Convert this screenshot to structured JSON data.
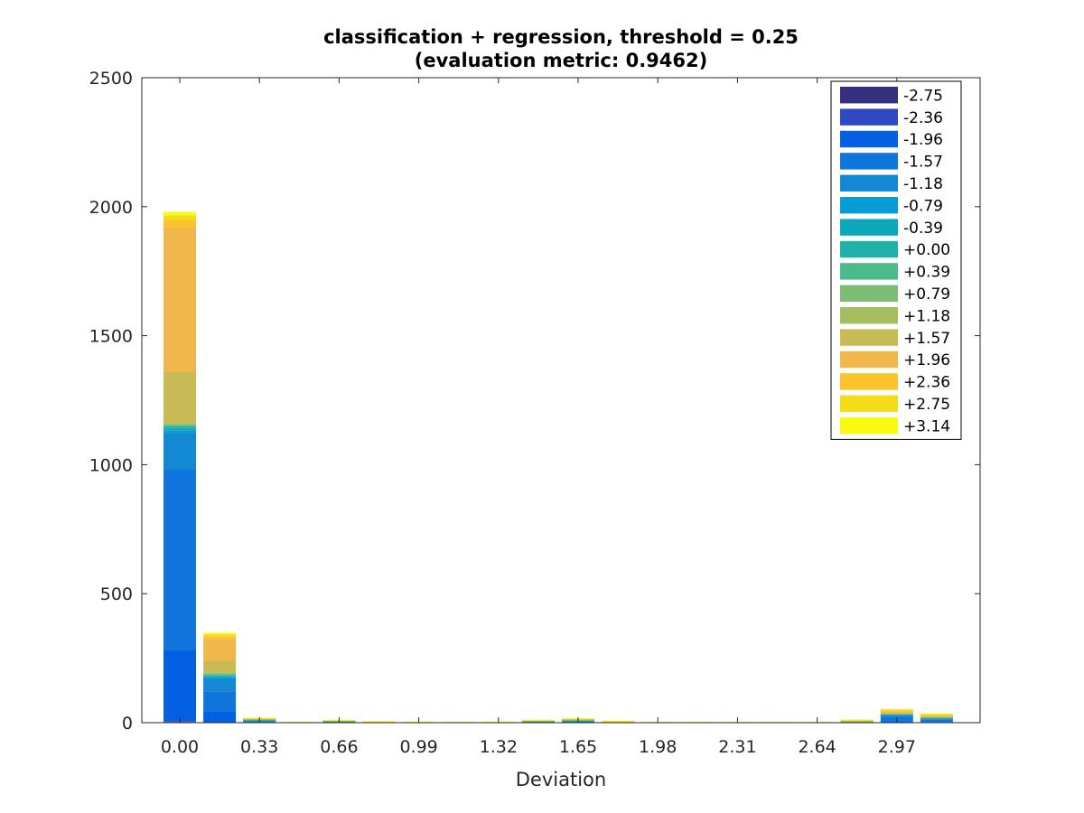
{
  "chart_data": {
    "type": "bar",
    "stacked": true,
    "title": "classification + regression, threshold = 0.25",
    "subtitle": "(evaluation metric: 0.9462)",
    "xlabel": "Deviation",
    "ylabel": "",
    "ylim": [
      0,
      2500
    ],
    "yticks": [
      0,
      500,
      1000,
      1500,
      2000,
      2500
    ],
    "xtick_labels": [
      "0.00",
      "0.33",
      "0.66",
      "0.99",
      "1.32",
      "1.65",
      "1.98",
      "2.31",
      "2.64",
      "2.97"
    ],
    "categories": [
      "0.00",
      "0.165",
      "0.33",
      "0.495",
      "0.66",
      "0.825",
      "0.99",
      "1.155",
      "1.32",
      "1.485",
      "1.65",
      "1.815",
      "1.98",
      "2.145",
      "2.31",
      "2.475",
      "2.64",
      "2.805",
      "2.97",
      "3.135"
    ],
    "legend_position": "top-right",
    "grid": false,
    "series": [
      {
        "name": "-2.75",
        "color": "#35307e",
        "values": [
          3,
          0,
          0,
          0,
          0,
          0,
          0,
          0,
          0,
          0,
          0,
          0,
          0,
          0,
          0,
          0,
          0,
          0,
          0,
          0
        ]
      },
      {
        "name": "-2.36",
        "color": "#2f48c4",
        "values": [
          3,
          0,
          0,
          0,
          0,
          0,
          0,
          0,
          0,
          0,
          0,
          0,
          0,
          0,
          0,
          0,
          0,
          0,
          0,
          0
        ]
      },
      {
        "name": "-1.96",
        "color": "#0360e2",
        "values": [
          274,
          42,
          3,
          1,
          1,
          1,
          1,
          1,
          1,
          1,
          2,
          1,
          0,
          0,
          0,
          0,
          0,
          0,
          5,
          3
        ]
      },
      {
        "name": "-1.57",
        "color": "#1075dd",
        "values": [
          702,
          80,
          3,
          0,
          1,
          0,
          0,
          0,
          0,
          2,
          2,
          1,
          0,
          0,
          0,
          0,
          0,
          0,
          18,
          10
        ]
      },
      {
        "name": "-1.18",
        "color": "#1388d3",
        "values": [
          140,
          50,
          2,
          0,
          1,
          0,
          0,
          0,
          0,
          1,
          2,
          1,
          0,
          0,
          0,
          0,
          0,
          1,
          5,
          3
        ]
      },
      {
        "name": "-0.79",
        "color": "#079cd4",
        "values": [
          10,
          5,
          1,
          0,
          1,
          0,
          0,
          0,
          0,
          1,
          1,
          0,
          0,
          0,
          0,
          0,
          0,
          1,
          2,
          1
        ]
      },
      {
        "name": "-0.39",
        "color": "#0ba8bc",
        "values": [
          8,
          4,
          1,
          0,
          1,
          0,
          0,
          0,
          0,
          1,
          1,
          0,
          0,
          0,
          0,
          0,
          0,
          1,
          1,
          1
        ]
      },
      {
        "name": "+0.00",
        "color": "#20b2a8",
        "values": [
          8,
          4,
          1,
          0,
          1,
          0,
          0,
          0,
          0,
          1,
          1,
          0,
          0,
          0,
          0,
          0,
          0,
          1,
          1,
          1
        ]
      },
      {
        "name": "+0.39",
        "color": "#4cbb8b",
        "values": [
          5,
          3,
          1,
          0,
          1,
          0,
          0,
          0,
          0,
          0,
          1,
          0,
          0,
          0,
          0,
          0,
          0,
          1,
          1,
          1
        ]
      },
      {
        "name": "+0.79",
        "color": "#7dbd73",
        "values": [
          4,
          3,
          1,
          0,
          1,
          0,
          0,
          0,
          0,
          0,
          1,
          0,
          0,
          0,
          0,
          0,
          0,
          1,
          1,
          1
        ]
      },
      {
        "name": "+1.18",
        "color": "#a5bd5f",
        "values": [
          5,
          4,
          1,
          0,
          0,
          0,
          0,
          0,
          0,
          0,
          1,
          0,
          0,
          0,
          0,
          0,
          0,
          1,
          2,
          1
        ]
      },
      {
        "name": "+1.57",
        "color": "#c8bb56",
        "values": [
          198,
          45,
          1,
          0,
          0,
          1,
          0,
          0,
          0,
          0,
          1,
          1,
          0,
          0,
          0,
          0,
          0,
          1,
          4,
          3
        ]
      },
      {
        "name": "+1.96",
        "color": "#f1b74a",
        "values": [
          560,
          85,
          1,
          0,
          0,
          1,
          0,
          0,
          0,
          1,
          1,
          1,
          0,
          0,
          0,
          0,
          0,
          1,
          5,
          4
        ]
      },
      {
        "name": "+2.36",
        "color": "#fdc32d",
        "values": [
          30,
          10,
          1,
          0,
          1,
          1,
          1,
          0,
          1,
          1,
          1,
          1,
          1,
          1,
          1,
          1,
          1,
          1,
          3,
          2
        ]
      },
      {
        "name": "+2.75",
        "color": "#f3dd1b",
        "values": [
          17,
          7,
          1,
          1,
          1,
          1,
          1,
          1,
          1,
          1,
          1,
          1,
          1,
          1,
          1,
          1,
          1,
          1,
          3,
          3
        ]
      },
      {
        "name": "+3.14",
        "color": "#f9fa0f",
        "values": [
          13,
          6,
          1,
          1,
          1,
          1,
          1,
          1,
          1,
          1,
          1,
          1,
          1,
          1,
          1,
          1,
          1,
          1,
          2,
          2
        ]
      }
    ]
  }
}
